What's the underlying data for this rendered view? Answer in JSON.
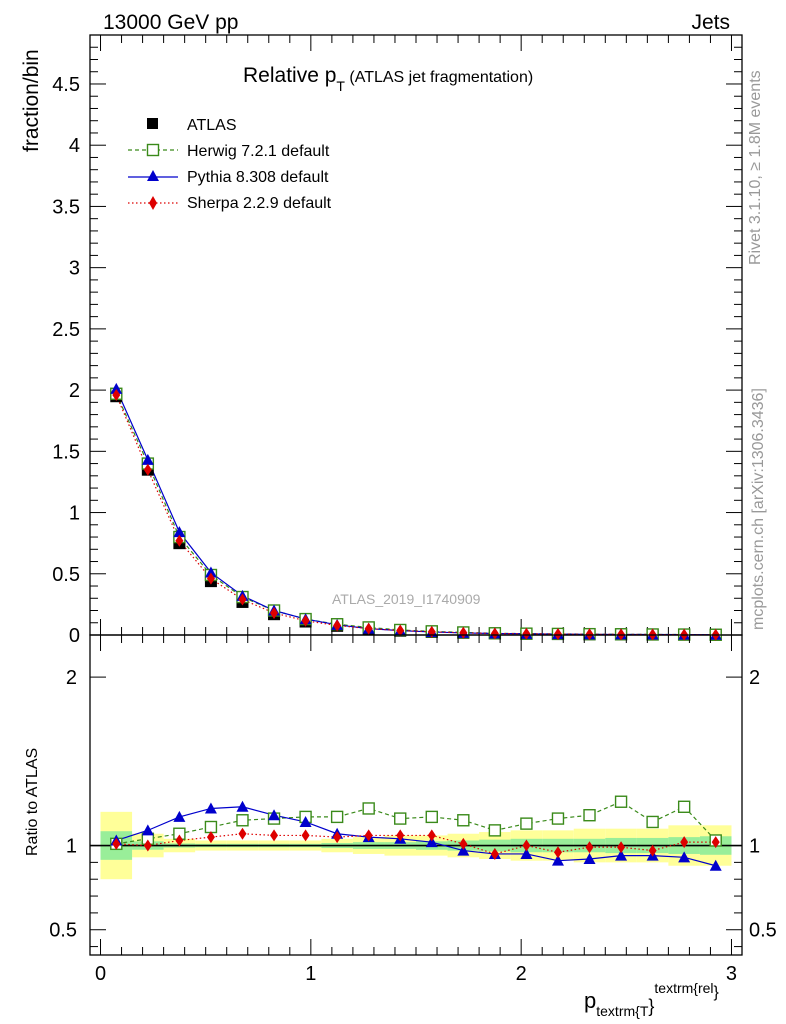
{
  "header": {
    "left": "13000 GeV pp",
    "right": "Jets"
  },
  "side_labels": {
    "rivet": "Rivet 3.1.10, ≥ 1.8M events",
    "mcplots": "mcplots.cern.ch [arXiv:1306.3436]"
  },
  "main_plot": {
    "title_main": "Relative p",
    "title_sub": "T",
    "title_rest": " (ATLAS jet fragmentation)",
    "ylabel": "fraction/bin",
    "watermark": "ATLAS_2019_I1740909"
  },
  "ratio_plot": {
    "ylabel": "Ratio to ATLAS"
  },
  "x_axis": {
    "label_p": "p",
    "label_sub": "textrm{T",
    "label_brace": "}",
    "label_sup": "textrm{rel",
    "label_sup_brace": "}"
  },
  "legend": [
    {
      "name": "ATLAS",
      "color": "#000000",
      "marker": "square-filled",
      "line": "none"
    },
    {
      "name": "Herwig 7.2.1 default",
      "color": "#3a8a1a",
      "marker": "square-open",
      "line": "dashed"
    },
    {
      "name": "Pythia 8.308 default",
      "color": "#0000cc",
      "marker": "triangle",
      "line": "solid"
    },
    {
      "name": "Sherpa 2.2.9 default",
      "color": "#dd0000",
      "marker": "diamond",
      "line": "dotted"
    }
  ],
  "chart_data": [
    {
      "type": "line",
      "x": [
        0.075,
        0.225,
        0.375,
        0.525,
        0.675,
        0.825,
        0.975,
        1.125,
        1.275,
        1.425,
        1.575,
        1.725,
        1.875,
        2.025,
        2.175,
        2.325,
        2.475,
        2.625,
        2.775,
        2.925
      ],
      "xlim": [
        -0.05,
        3.05
      ],
      "ylim": [
        0,
        4.9
      ],
      "xticks": [
        "0",
        "1",
        "2",
        "3"
      ],
      "yticks": [
        "0",
        "0.5",
        "1",
        "1.5",
        "2",
        "2.5",
        "3",
        "3.5",
        "4",
        "4.5"
      ],
      "series": [
        {
          "name": "ATLAS",
          "values": [
            1.95,
            1.35,
            0.75,
            0.44,
            0.27,
            0.17,
            0.11,
            0.075,
            0.05,
            0.035,
            0.025,
            0.018,
            0.013,
            0.01,
            0.008,
            0.006,
            0.005,
            0.004,
            0.003,
            0.002
          ]
        },
        {
          "name": "Herwig 7.2.1 default",
          "values": [
            1.97,
            1.4,
            0.8,
            0.49,
            0.31,
            0.2,
            0.13,
            0.088,
            0.062,
            0.041,
            0.03,
            0.021,
            0.014,
            0.011,
            0.009,
            0.007,
            0.006,
            0.0045,
            0.0037,
            0.002
          ]
        },
        {
          "name": "Pythia 8.308 default",
          "values": [
            2.01,
            1.43,
            0.84,
            0.51,
            0.32,
            0.2,
            0.13,
            0.083,
            0.052,
            0.036,
            0.025,
            0.017,
            0.012,
            0.0095,
            0.0073,
            0.0055,
            0.0047,
            0.0038,
            0.0028,
            0.0018
          ]
        },
        {
          "name": "Sherpa 2.2.9 default",
          "values": [
            1.96,
            1.35,
            0.77,
            0.46,
            0.29,
            0.18,
            0.116,
            0.078,
            0.052,
            0.037,
            0.026,
            0.018,
            0.012,
            0.01,
            0.0077,
            0.0059,
            0.005,
            0.0039,
            0.003,
            0.002
          ]
        }
      ]
    },
    {
      "type": "line",
      "title": "Ratio to ATLAS",
      "x": [
        0.075,
        0.225,
        0.375,
        0.525,
        0.675,
        0.825,
        0.975,
        1.125,
        1.275,
        1.425,
        1.575,
        1.725,
        1.875,
        2.025,
        2.175,
        2.325,
        2.475,
        2.625,
        2.775,
        2.925
      ],
      "ylim": [
        0.35,
        2.25
      ],
      "yticks": [
        "0.5",
        "1",
        "2"
      ],
      "band_edges": [
        0,
        0.15,
        0.3,
        0.45,
        0.6,
        0.75,
        0.9,
        1.05,
        1.2,
        1.35,
        1.5,
        1.65,
        1.8,
        1.95,
        2.1,
        2.25,
        2.4,
        2.55,
        2.7,
        2.85,
        3.0
      ],
      "stat_band": [
        0.085,
        0.025,
        0.012,
        0.01,
        0.01,
        0.01,
        0.01,
        0.015,
        0.02,
        0.02,
        0.025,
        0.03,
        0.035,
        0.04,
        0.04,
        0.04,
        0.045,
        0.045,
        0.05,
        0.055
      ],
      "total_band": [
        0.2,
        0.07,
        0.04,
        0.03,
        0.03,
        0.03,
        0.03,
        0.04,
        0.05,
        0.06,
        0.06,
        0.07,
        0.08,
        0.09,
        0.09,
        0.1,
        0.1,
        0.1,
        0.12,
        0.12
      ],
      "series": [
        {
          "name": "Herwig 7.2.1 default",
          "values": [
            1.01,
            1.04,
            1.07,
            1.11,
            1.15,
            1.16,
            1.17,
            1.17,
            1.22,
            1.16,
            1.17,
            1.15,
            1.09,
            1.13,
            1.16,
            1.18,
            1.26,
            1.14,
            1.23,
            1.03
          ]
        },
        {
          "name": "Pythia 8.308 default",
          "values": [
            1.03,
            1.09,
            1.17,
            1.22,
            1.23,
            1.18,
            1.14,
            1.07,
            1.05,
            1.04,
            1.02,
            0.97,
            0.95,
            0.95,
            0.91,
            0.92,
            0.94,
            0.94,
            0.93,
            0.88
          ]
        },
        {
          "name": "Sherpa 2.2.9 default",
          "values": [
            1.01,
            1.0,
            1.03,
            1.05,
            1.07,
            1.06,
            1.06,
            1.05,
            1.06,
            1.06,
            1.06,
            1.01,
            0.95,
            1.0,
            0.96,
            0.99,
            0.99,
            0.97,
            1.02,
            1.02
          ]
        }
      ]
    }
  ]
}
